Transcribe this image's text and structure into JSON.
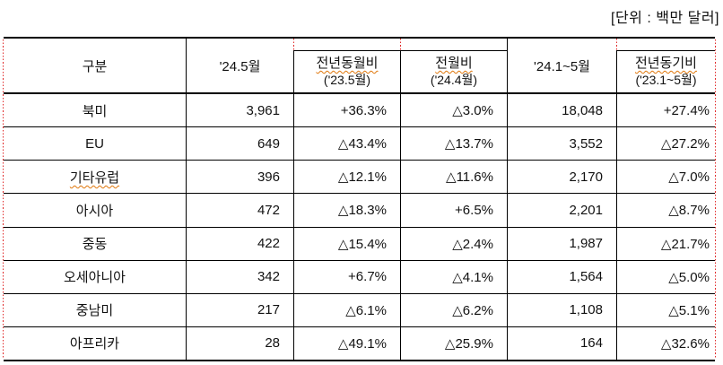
{
  "unit_label": "[단위 : 백만 달러]",
  "colors": {
    "border_black": "#000000",
    "guide_red": "#e02a2a",
    "spellcheck_orange": "#e0760a",
    "text": "#111111"
  },
  "table": {
    "headers": {
      "category": "구분",
      "month": "'24.5월",
      "yoy_line1": "전년동월비",
      "yoy_line2": "('23.5월)",
      "mom_line1": "전월비",
      "mom_line2": "('24.4월)",
      "cumulative": "'24.1~5월",
      "yoy_cum_line1": "전년동기비",
      "yoy_cum_line2": "('23.1~5월)"
    },
    "rows": [
      {
        "region": "북미",
        "month": "3,961",
        "yoy": "+36.3%",
        "mom": "△3.0%",
        "cumulative": "18,048",
        "yoy_cum": "+27.4%"
      },
      {
        "region": "EU",
        "month": "649",
        "yoy": "△43.4%",
        "mom": "△13.7%",
        "cumulative": "3,552",
        "yoy_cum": "△27.2%"
      },
      {
        "region": "기타유럽",
        "month": "396",
        "yoy": "△12.1%",
        "mom": "△11.6%",
        "cumulative": "2,170",
        "yoy_cum": "△7.0%"
      },
      {
        "region": "아시아",
        "month": "472",
        "yoy": "△18.3%",
        "mom": "+6.5%",
        "cumulative": "2,201",
        "yoy_cum": "△8.7%"
      },
      {
        "region": "중동",
        "month": "422",
        "yoy": "△15.4%",
        "mom": "△2.4%",
        "cumulative": "1,987",
        "yoy_cum": "△21.7%"
      },
      {
        "region": "오세아니아",
        "month": "342",
        "yoy": "+6.7%",
        "mom": "△4.1%",
        "cumulative": "1,564",
        "yoy_cum": "△5.0%"
      },
      {
        "region": "중남미",
        "month": "217",
        "yoy": "△6.1%",
        "mom": "△6.2%",
        "cumulative": "1,108",
        "yoy_cum": "△5.1%"
      },
      {
        "region": "아프리카",
        "month": "28",
        "yoy": "△49.1%",
        "mom": "△25.9%",
        "cumulative": "164",
        "yoy_cum": "△32.6%"
      }
    ]
  }
}
